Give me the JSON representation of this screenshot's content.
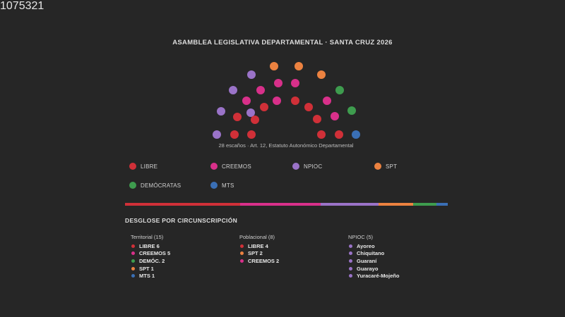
{
  "title": "ASAMBLEA LEGISLATIVA DEPARTAMENTAL · SANTA CRUZ 2026",
  "caption": "28 escaños · Art. 12, Estatuto Autonómico Departamental",
  "colors": {
    "LIBRE": "#d03038",
    "CREEMOS": "#d8308a",
    "NPIOC": "#9a73c8",
    "SPT": "#ec8240",
    "DEMOCRATAS": "#3e9c4e",
    "MTS": "#3a6fb5"
  },
  "hemicycle_seats": [
    "NPIOC",
    "LIBRE",
    "LIBRE",
    "LIBRE",
    "LIBRE",
    "NPIOC",
    "MTS",
    "NPIOC",
    "LIBRE",
    "CREEMOS",
    "LIBRE",
    "LIBRE",
    "CREEMOS",
    "DEMOCRATAS",
    "NPIOC",
    "CREEMOS",
    "CREEMOS",
    "CREEMOS",
    "CREEMOS",
    "DEMOCRATAS",
    "NPIOC",
    "SPT",
    "SPT",
    "SPT",
    "LIBRE",
    "LIBRE",
    "CREEMOS",
    "LIBRE"
  ],
  "legend": [
    {
      "party": "LIBRE",
      "label": "LIBRE",
      "count": "10",
      "seats": 10
    },
    {
      "party": "CREEMOS",
      "label": "CREEMOS",
      "count": "7",
      "seats": 7
    },
    {
      "party": "NPIOC",
      "label": "NPIOC",
      "count": "5",
      "seats": 5
    },
    {
      "party": "SPT",
      "label": "SPT",
      "count": "3",
      "seats": 3
    },
    {
      "party": "DEMOCRATAS",
      "label": "DEMÓCRATAS",
      "count": "2",
      "seats": 2
    },
    {
      "party": "MTS",
      "label": "MTS",
      "count": "1",
      "seats": 1
    }
  ],
  "breakdown_title": "DESGLOSE POR CIRCUNSCRIPCIÓN",
  "breakdown": [
    {
      "title": "Territorial (15)",
      "items": [
        {
          "party": "LIBRE",
          "text": "LIBRE 6"
        },
        {
          "party": "CREEMOS",
          "text": "CREEMOS 5"
        },
        {
          "party": "DEMOCRATAS",
          "text": "DEMÓC. 2"
        },
        {
          "party": "SPT",
          "text": "SPT 1"
        },
        {
          "party": "MTS",
          "text": "MTS 1"
        }
      ]
    },
    {
      "title": "Poblacional (8)",
      "items": [
        {
          "party": "LIBRE",
          "text": "LIBRE 4"
        },
        {
          "party": "SPT",
          "text": "SPT 2"
        },
        {
          "party": "CREEMOS",
          "text": "CREEMOS 2"
        }
      ]
    },
    {
      "title": "NPIOC (5)",
      "items": [
        {
          "party": "NPIOC",
          "text": "Ayoreo"
        },
        {
          "party": "NPIOC",
          "text": "Chiquitano"
        },
        {
          "party": "NPIOC",
          "text": "Guaraní"
        },
        {
          "party": "NPIOC",
          "text": "Guarayo"
        },
        {
          "party": "NPIOC",
          "text": "Yuracaré-Mojeño"
        }
      ]
    }
  ]
}
